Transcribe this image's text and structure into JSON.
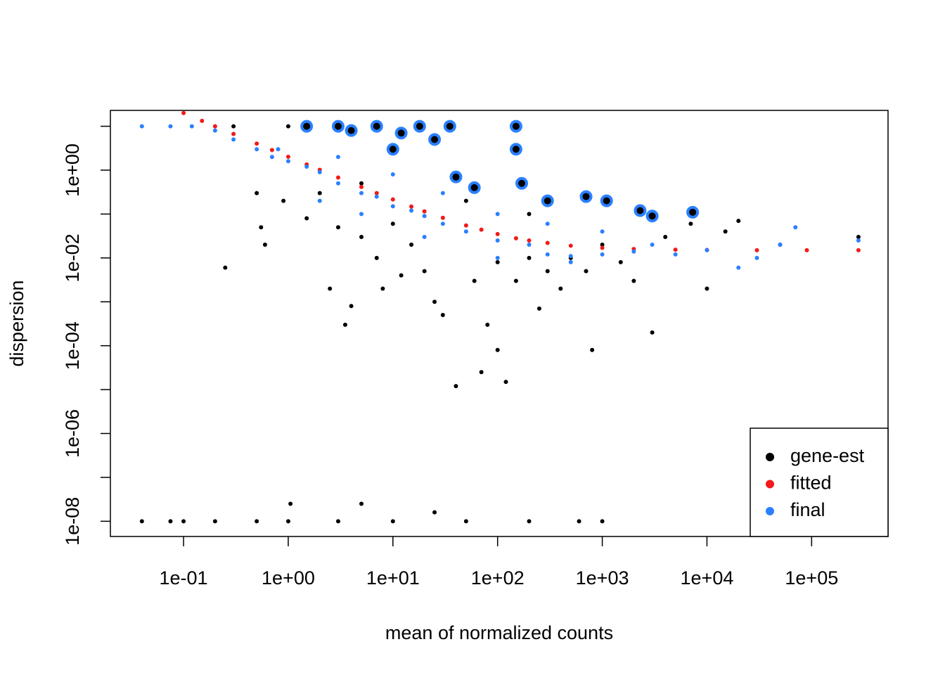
{
  "chart_data": {
    "type": "scatter",
    "xlabel": "mean of normalized counts",
    "ylabel": "dispersion",
    "xlog": true,
    "ylog": true,
    "legend": "bottom-right",
    "xlim": [
      0.02,
      537000
    ],
    "ylim": [
      4.5e-09,
      23
    ],
    "xticks": [
      {
        "value": 0.1,
        "label": "1e-01"
      },
      {
        "value": 1,
        "label": "1e+00"
      },
      {
        "value": 10,
        "label": "1e+01"
      },
      {
        "value": 100,
        "label": "1e+02"
      },
      {
        "value": 1000,
        "label": "1e+03"
      },
      {
        "value": 10000,
        "label": "1e+04"
      },
      {
        "value": 100000,
        "label": "1e+05"
      }
    ],
    "yticks": [
      {
        "value": 1e-08,
        "label": "1e-08"
      },
      {
        "value": 1e-06,
        "label": "1e-06"
      },
      {
        "value": 0.0001,
        "label": "1e-04"
      },
      {
        "value": 0.01,
        "label": "1e-02"
      },
      {
        "value": 1,
        "label": "1e+00"
      }
    ],
    "yminor": [
      1e-07,
      1e-05,
      0.001,
      0.1,
      10
    ],
    "series": [
      {
        "name": "gene-est",
        "color": "#000000",
        "x": [
          0.04,
          0.075,
          0.1,
          0.2,
          0.5,
          1,
          3,
          10,
          50,
          200,
          600,
          1000,
          1.05,
          5,
          25,
          0.25,
          0.3,
          1,
          0.5,
          0.6,
          0.55,
          0.9,
          1.5,
          2,
          3,
          2.5,
          3.5,
          4,
          5,
          7,
          8,
          10,
          12,
          15,
          20,
          25,
          30,
          40,
          60,
          70,
          80,
          100,
          100,
          120,
          150,
          200,
          250,
          300,
          400,
          500,
          700,
          800,
          1000,
          1500,
          2000,
          3000,
          4000,
          7000,
          10000,
          15000,
          20000,
          50000,
          280000,
          35,
          150,
          5,
          50,
          200
        ],
        "values": [
          1e-08,
          1e-08,
          1e-08,
          1e-08,
          1e-08,
          1e-08,
          1e-08,
          1e-08,
          1e-08,
          1e-08,
          1e-08,
          1e-08,
          2.5e-08,
          2.5e-08,
          1.6e-08,
          0.006,
          10,
          10,
          0.3,
          0.02,
          0.05,
          0.2,
          0.08,
          0.3,
          0.05,
          0.002,
          0.0003,
          0.0008,
          0.03,
          0.01,
          0.002,
          0.06,
          0.004,
          0.02,
          0.005,
          0.001,
          0.0005,
          1.2e-05,
          0.003,
          2.5e-05,
          0.0003,
          0.008,
          8e-05,
          1.5e-05,
          0.003,
          0.01,
          0.0007,
          0.005,
          0.002,
          0.01,
          0.005,
          8e-05,
          0.02,
          0.008,
          0.003,
          0.0002,
          0.03,
          0.06,
          0.002,
          0.04,
          0.07,
          0.02,
          0.03,
          10,
          10,
          0.5,
          0.2,
          0.1
        ]
      },
      {
        "name": "fitted",
        "color": "#f21a1a",
        "x": [
          0.1,
          0.15,
          0.2,
          0.3,
          0.5,
          0.7,
          1,
          1.5,
          2,
          3,
          5,
          7,
          10,
          15,
          20,
          30,
          50,
          70,
          100,
          150,
          200,
          300,
          500,
          1000,
          2000,
          5000,
          10000,
          30000,
          90000,
          280000
        ],
        "values": [
          20,
          13.3,
          10,
          6.68,
          4.02,
          2.87,
          2.02,
          1.35,
          1.02,
          0.68,
          0.415,
          0.3,
          0.215,
          0.148,
          0.115,
          0.082,
          0.055,
          0.044,
          0.035,
          0.028,
          0.025,
          0.022,
          0.019,
          0.017,
          0.016,
          0.0154,
          0.0152,
          0.015,
          0.015,
          0.015
        ]
      },
      {
        "name": "final",
        "color": "#2a80ff",
        "x": [
          0.04,
          0.075,
          0.12,
          0.2,
          0.3,
          0.5,
          0.7,
          1,
          1.5,
          2,
          3,
          5,
          7,
          10,
          15,
          20,
          30,
          50,
          100,
          200,
          300,
          500,
          1000,
          2000,
          3000,
          5000,
          10000,
          20000,
          30000,
          50000,
          70000,
          280000,
          3,
          10,
          30,
          100,
          300,
          1000,
          0.8,
          2,
          5,
          20,
          100,
          500
        ],
        "values": [
          10,
          10,
          10,
          8,
          5,
          3,
          2,
          1.6,
          1.2,
          0.9,
          0.5,
          0.3,
          0.25,
          0.15,
          0.12,
          0.09,
          0.06,
          0.04,
          0.025,
          0.02,
          0.012,
          0.011,
          0.012,
          0.014,
          0.02,
          0.012,
          0.015,
          0.006,
          0.01,
          0.02,
          0.05,
          0.025,
          2,
          0.8,
          0.3,
          0.1,
          0.06,
          0.04,
          3,
          0.2,
          0.1,
          0.03,
          0.01,
          0.008
        ]
      }
    ],
    "outliers": {
      "color": "#2a80ff",
      "x": [
        1.5,
        3,
        4,
        7,
        12,
        18,
        25,
        35,
        40,
        150,
        150,
        170,
        300,
        700,
        1100,
        2300,
        3000,
        7300,
        60,
        10
      ],
      "values": [
        10,
        10,
        8,
        10,
        7,
        10,
        5,
        10,
        0.7,
        10,
        3,
        0.5,
        0.2,
        0.25,
        0.2,
        0.12,
        0.09,
        0.11,
        0.4,
        3
      ]
    }
  }
}
